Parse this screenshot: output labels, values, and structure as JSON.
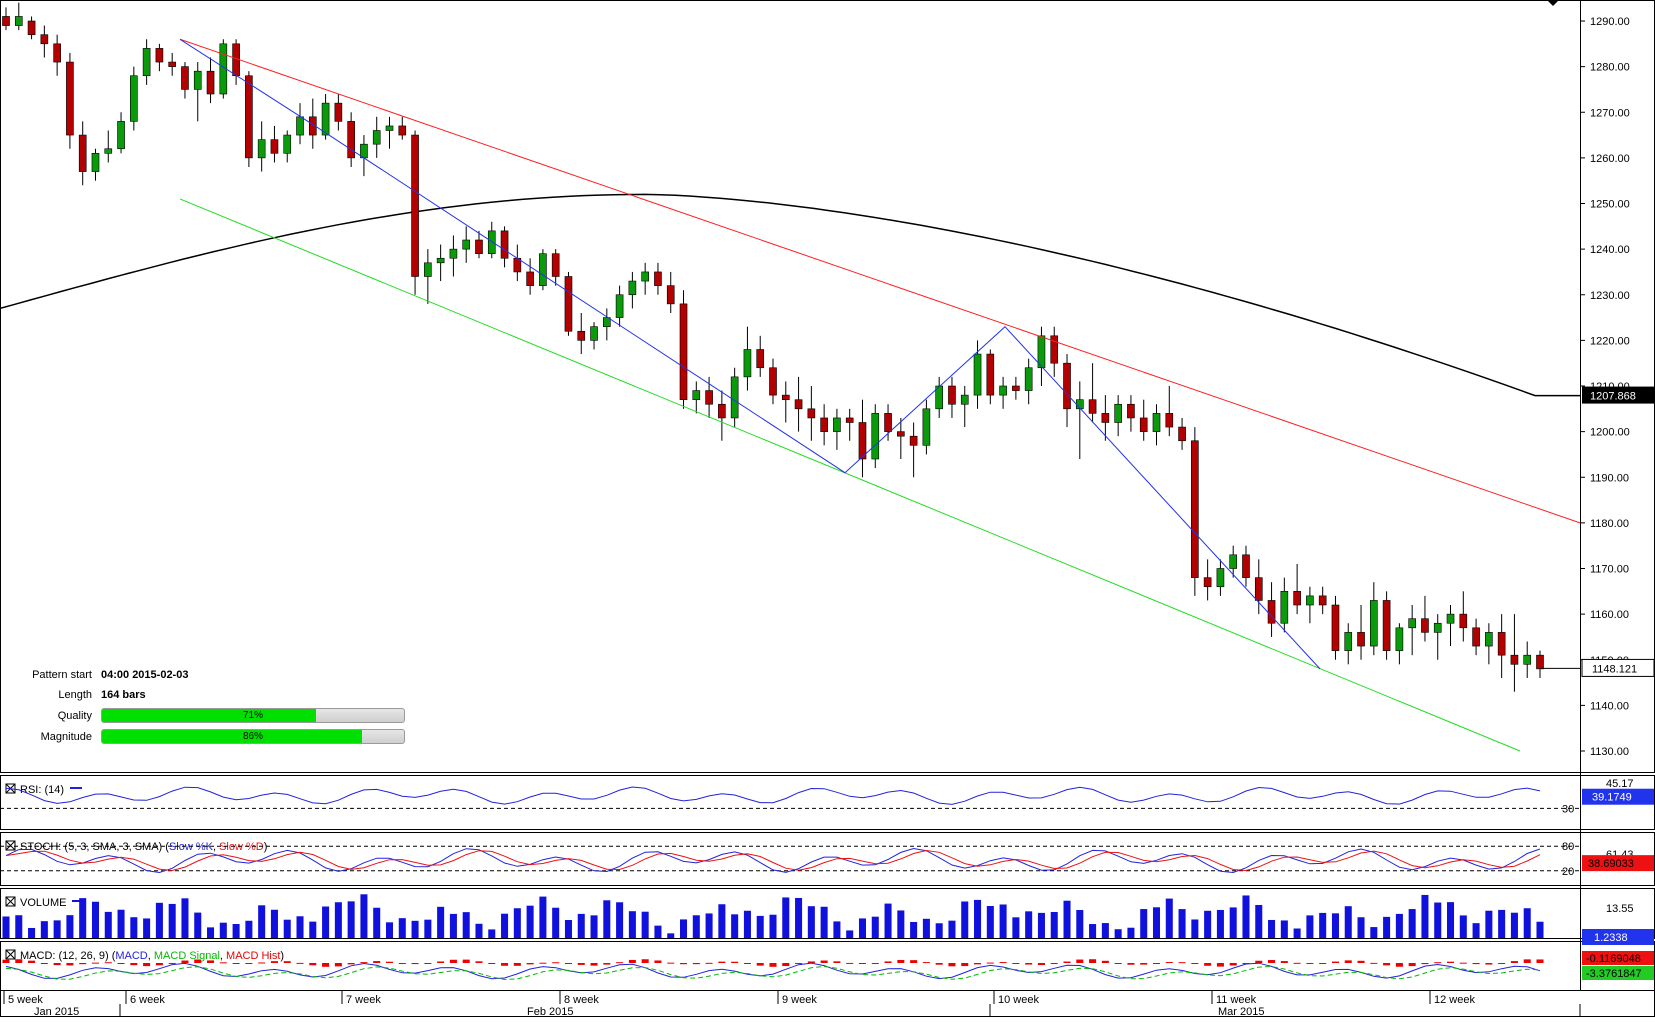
{
  "chart_data": {
    "type": "candlestick",
    "price_axis": {
      "min": 1130,
      "max": 1290,
      "ticks": [
        "1290.00",
        "1280.00",
        "1270.00",
        "1260.00",
        "1250.00",
        "1240.00",
        "1230.00",
        "1220.00",
        "1210.00",
        "1200.00",
        "1190.00",
        "1180.00",
        "1170.00",
        "1160.00",
        "1150.00",
        "1140.00",
        "1130.00"
      ],
      "current_price_label": "1148.121",
      "ma_label": "1207.868"
    },
    "candles_ohlc": [
      [
        1291,
        1293,
        1288,
        1289
      ],
      [
        1289,
        1294,
        1288,
        1291
      ],
      [
        1290,
        1291,
        1286,
        1287
      ],
      [
        1287,
        1289,
        1282,
        1285
      ],
      [
        1285,
        1287,
        1278,
        1281
      ],
      [
        1281,
        1283,
        1262,
        1265
      ],
      [
        1265,
        1268,
        1254,
        1257
      ],
      [
        1257,
        1262,
        1255,
        1261
      ],
      [
        1261,
        1266,
        1259,
        1262
      ],
      [
        1262,
        1270,
        1261,
        1268
      ],
      [
        1268,
        1280,
        1266,
        1278
      ],
      [
        1278,
        1286,
        1276,
        1284
      ],
      [
        1284,
        1285,
        1279,
        1281
      ],
      [
        1281,
        1283,
        1278,
        1280
      ],
      [
        1280,
        1281,
        1273,
        1275
      ],
      [
        1275,
        1281,
        1268,
        1279
      ],
      [
        1279,
        1282,
        1272,
        1274
      ],
      [
        1274,
        1286,
        1273,
        1285
      ],
      [
        1285,
        1286,
        1276,
        1278
      ],
      [
        1278,
        1279,
        1258,
        1260
      ],
      [
        1260,
        1268,
        1257,
        1264
      ],
      [
        1264,
        1267,
        1259,
        1261
      ],
      [
        1261,
        1266,
        1259,
        1265
      ],
      [
        1265,
        1272,
        1263,
        1269
      ],
      [
        1269,
        1273,
        1262,
        1265
      ],
      [
        1265,
        1274,
        1264,
        1272
      ],
      [
        1272,
        1274,
        1266,
        1268
      ],
      [
        1268,
        1270,
        1258,
        1260
      ],
      [
        1260,
        1265,
        1256,
        1263
      ],
      [
        1263,
        1269,
        1260,
        1266
      ],
      [
        1266,
        1269,
        1262,
        1267
      ],
      [
        1267,
        1269,
        1264,
        1265
      ],
      [
        1265,
        1266,
        1230,
        1234
      ],
      [
        1234,
        1240,
        1228,
        1237
      ],
      [
        1237,
        1241,
        1233,
        1238
      ],
      [
        1238,
        1243,
        1234,
        1240
      ],
      [
        1240,
        1245,
        1237,
        1242
      ],
      [
        1242,
        1244,
        1238,
        1239
      ],
      [
        1239,
        1246,
        1238,
        1244
      ],
      [
        1244,
        1245,
        1236,
        1238
      ],
      [
        1238,
        1241,
        1233,
        1235
      ],
      [
        1235,
        1238,
        1230,
        1232
      ],
      [
        1232,
        1240,
        1231,
        1239
      ],
      [
        1239,
        1240,
        1232,
        1234
      ],
      [
        1234,
        1235,
        1221,
        1222
      ],
      [
        1222,
        1226,
        1217,
        1220
      ],
      [
        1220,
        1224,
        1218,
        1223
      ],
      [
        1223,
        1227,
        1220,
        1225
      ],
      [
        1225,
        1232,
        1223,
        1230
      ],
      [
        1230,
        1235,
        1227,
        1233
      ],
      [
        1233,
        1237,
        1230,
        1235
      ],
      [
        1235,
        1237,
        1230,
        1232
      ],
      [
        1232,
        1235,
        1226,
        1228
      ],
      [
        1228,
        1231,
        1205,
        1207
      ],
      [
        1207,
        1211,
        1204,
        1209
      ],
      [
        1209,
        1212,
        1203,
        1206
      ],
      [
        1206,
        1209,
        1198,
        1203
      ],
      [
        1203,
        1214,
        1201,
        1212
      ],
      [
        1212,
        1223,
        1209,
        1218
      ],
      [
        1218,
        1221,
        1212,
        1214
      ],
      [
        1214,
        1216,
        1206,
        1208
      ],
      [
        1208,
        1211,
        1202,
        1207
      ],
      [
        1207,
        1212,
        1200,
        1205
      ],
      [
        1205,
        1210,
        1198,
        1203
      ],
      [
        1203,
        1206,
        1197,
        1200
      ],
      [
        1200,
        1205,
        1196,
        1203
      ],
      [
        1203,
        1205,
        1198,
        1202
      ],
      [
        1202,
        1207,
        1190,
        1194
      ],
      [
        1194,
        1206,
        1192,
        1204
      ],
      [
        1204,
        1206,
        1198,
        1200
      ],
      [
        1200,
        1203,
        1194,
        1199
      ],
      [
        1199,
        1202,
        1190,
        1197
      ],
      [
        1197,
        1207,
        1195,
        1205
      ],
      [
        1205,
        1212,
        1203,
        1210
      ],
      [
        1210,
        1212,
        1203,
        1206
      ],
      [
        1206,
        1210,
        1201,
        1208
      ],
      [
        1208,
        1220,
        1205,
        1217
      ],
      [
        1217,
        1218,
        1206,
        1208
      ],
      [
        1208,
        1212,
        1205,
        1210
      ],
      [
        1210,
        1212,
        1207,
        1209
      ],
      [
        1209,
        1216,
        1206,
        1214
      ],
      [
        1214,
        1223,
        1210,
        1221
      ],
      [
        1221,
        1223,
        1212,
        1215
      ],
      [
        1215,
        1217,
        1201,
        1205
      ],
      [
        1205,
        1211,
        1194,
        1207
      ],
      [
        1207,
        1215,
        1202,
        1204
      ],
      [
        1204,
        1208,
        1198,
        1202
      ],
      [
        1202,
        1208,
        1199,
        1206
      ],
      [
        1206,
        1208,
        1200,
        1203
      ],
      [
        1203,
        1207,
        1198,
        1200
      ],
      [
        1200,
        1206,
        1197,
        1204
      ],
      [
        1204,
        1210,
        1199,
        1201
      ],
      [
        1201,
        1203,
        1196,
        1198
      ],
      [
        1198,
        1201,
        1164,
        1168
      ],
      [
        1168,
        1172,
        1163,
        1166
      ],
      [
        1166,
        1172,
        1164,
        1170
      ],
      [
        1170,
        1175,
        1168,
        1173
      ],
      [
        1173,
        1175,
        1166,
        1168
      ],
      [
        1168,
        1172,
        1160,
        1163
      ],
      [
        1163,
        1167,
        1155,
        1158
      ],
      [
        1158,
        1168,
        1156,
        1165
      ],
      [
        1165,
        1171,
        1160,
        1162
      ],
      [
        1162,
        1166,
        1158,
        1164
      ],
      [
        1164,
        1166,
        1160,
        1162
      ],
      [
        1162,
        1164,
        1150,
        1152
      ],
      [
        1152,
        1158,
        1149,
        1156
      ],
      [
        1156,
        1162,
        1150,
        1153
      ],
      [
        1153,
        1167,
        1151,
        1163
      ],
      [
        1163,
        1165,
        1150,
        1152
      ],
      [
        1152,
        1158,
        1149,
        1157
      ],
      [
        1157,
        1162,
        1151,
        1159
      ],
      [
        1159,
        1164,
        1154,
        1156
      ],
      [
        1156,
        1160,
        1150,
        1158
      ],
      [
        1158,
        1162,
        1153,
        1160
      ],
      [
        1160,
        1165,
        1154,
        1157
      ],
      [
        1157,
        1159,
        1151,
        1153
      ],
      [
        1153,
        1158,
        1149,
        1156
      ],
      [
        1156,
        1160,
        1146,
        1151
      ],
      [
        1151,
        1160,
        1143,
        1149
      ],
      [
        1149,
        1154,
        1146,
        1151
      ],
      [
        1151,
        1152,
        1146,
        1148
      ]
    ],
    "indicators": {
      "rsi": {
        "name": "RSI: (14)",
        "level_label": "30",
        "top_tick": "45.17",
        "value_label": "39.1749"
      },
      "stoch": {
        "name_prefix": "STOCH: (5, 3, SMA, 3, SMA) (",
        "k_name": "Slow %K",
        "sep": ", ",
        "d_name": "Slow %D",
        "suffix": ")",
        "upper_level": "80",
        "lower_level": "20",
        "mid_tick": "61.43",
        "value_label": "38.69033"
      },
      "volume": {
        "name": "VOLUME",
        "top_tick": "13.55",
        "value_label": "1.2338"
      },
      "macd": {
        "name_prefix": "MACD: (12, 26, 9) (",
        "main_name": "MACD",
        "signal_name": "MACD Signal",
        "hist_name": "MACD Hist",
        "suffix": ")",
        "value_main": "-0.1169048",
        "value_signal": "-3.3761847"
      }
    },
    "time_axis": {
      "week_labels": [
        "5 week",
        "6 week",
        "7 week",
        "8 week",
        "9 week",
        "10 week",
        "11 week",
        "12 week"
      ],
      "month_labels": [
        "Jan 2015",
        "Feb 2015",
        "Mar 2015"
      ]
    },
    "pattern": {
      "start_label": "Pattern start",
      "start_value": "04:00 2015-02-03",
      "length_label": "Length",
      "length_value": "164 bars",
      "quality_label": "Quality",
      "quality": 0.71,
      "quality_text": "71%",
      "magnitude_label": "Magnitude",
      "magnitude": 0.86,
      "magnitude_text": "86%"
    },
    "colors": {
      "bull": "#0b9a0b",
      "bear": "#b30000",
      "ma": "#000000",
      "resistance": "#ff2020",
      "support": "#22dd22",
      "zigzag": "#2233ee",
      "rsi": "#2222dd",
      "stoch_k": "#2222dd",
      "stoch_d": "#ee1111",
      "volume": "#1111dd",
      "macd_hist": "#ee0000",
      "macd_signal": "#00bb00",
      "price_label_bg": "#000000",
      "rsi_label_bg": "#2233ee",
      "stoch_label_bg": "#ee1111",
      "macd_label_bg": "#ee1111",
      "signal_label_bg": "#22cc22"
    }
  }
}
